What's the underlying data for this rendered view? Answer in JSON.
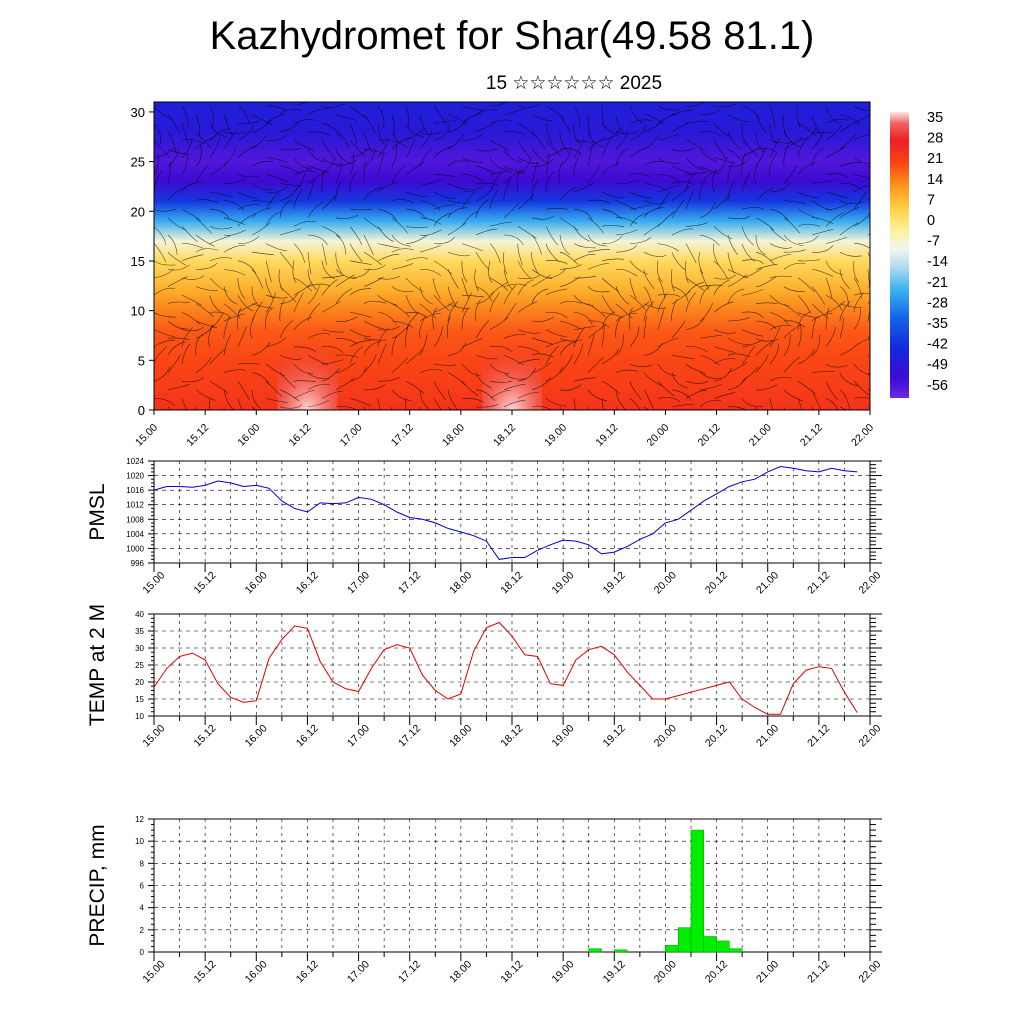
{
  "header": {
    "title": "Kazhydromet for Shar(49.58 81.1)",
    "subtitle": "15 ☆☆☆☆☆☆ 2025"
  },
  "time_ticks": [
    "15.00",
    "15.12",
    "16.00",
    "16.12",
    "17.00",
    "17.12",
    "18.00",
    "18.12",
    "19.00",
    "19.12",
    "20.00",
    "20.12",
    "21.00",
    "21.12",
    "22.00"
  ],
  "chart_data": [
    {
      "type": "heatmap",
      "title": "",
      "xlabel": "",
      "ylabel": "",
      "x_ticks": [
        "15.00",
        "15.12",
        "16.00",
        "16.12",
        "17.00",
        "17.12",
        "18.00",
        "18.12",
        "19.00",
        "19.12",
        "20.00",
        "20.12",
        "21.00",
        "21.12",
        "22.00"
      ],
      "y_ticks": [
        0,
        5,
        10,
        15,
        20,
        25,
        30
      ],
      "ylim": [
        0,
        31
      ],
      "colorbar_labels": [
        "35",
        "28",
        "21",
        "14",
        "7",
        "0",
        "-7",
        "-14",
        "-21",
        "-28",
        "-35",
        "-42",
        "-49",
        "-56"
      ],
      "vertical_profile_levels": [
        0,
        2,
        5,
        8,
        10,
        12,
        15,
        17,
        19,
        21,
        23,
        25,
        28,
        31
      ],
      "vertical_profile_values": [
        24,
        22,
        20,
        18,
        14,
        9,
        2,
        -8,
        -25,
        -42,
        -55,
        -58,
        -50,
        -48
      ],
      "surface_max_times": [
        "16.12",
        "18.12"
      ],
      "overlay": "wind streamlines"
    },
    {
      "type": "line",
      "ylabel": "PMSL",
      "ylim": [
        996,
        1024
      ],
      "y_ticks": [
        996,
        1000,
        1004,
        1008,
        1012,
        1016,
        1020,
        1024
      ],
      "x_ticks": [
        "15.00",
        "15.12",
        "16.00",
        "16.12",
        "17.00",
        "17.12",
        "18.00",
        "18.12",
        "19.00",
        "19.12",
        "20.00",
        "20.12",
        "21.00",
        "21.12",
        "22.00"
      ],
      "series": [
        {
          "color": "#0000cc",
          "x": [
            0,
            3,
            6,
            9,
            12,
            15,
            18,
            21,
            24,
            27,
            30,
            33,
            36,
            39,
            42,
            45,
            48,
            51,
            54,
            57,
            60,
            63,
            66,
            69,
            72,
            75,
            78,
            81,
            84,
            87,
            90,
            93,
            96,
            99,
            102,
            105,
            108,
            111,
            114,
            117,
            120,
            123,
            126,
            129,
            132,
            135,
            138,
            141,
            144,
            147,
            150,
            153,
            156,
            159,
            162,
            165
          ],
          "values": [
            1016,
            1017,
            1017,
            1016.8,
            1017.3,
            1018.5,
            1018,
            1017,
            1017.3,
            1016.5,
            1013,
            1011,
            1010,
            1012.5,
            1012.3,
            1012.5,
            1014,
            1013.5,
            1012,
            1010,
            1008.5,
            1008,
            1007,
            1005.5,
            1004.5,
            1003.5,
            1002,
            997,
            997.5,
            997.5,
            999.5,
            1001,
            1002.3,
            1002,
            1001,
            998.5,
            999,
            1000.5,
            1002.5,
            1004,
            1007,
            1008,
            1010.5,
            1013,
            1015,
            1017,
            1018.3,
            1019,
            1021,
            1022.5,
            1022,
            1021.3,
            1021,
            1022,
            1021.3,
            1021
          ]
        }
      ]
    },
    {
      "type": "line",
      "ylabel": "TEMP at 2 M",
      "ylim": [
        10,
        40
      ],
      "y_ticks": [
        10,
        15,
        20,
        25,
        30,
        35,
        40
      ],
      "x_ticks": [
        "15.00",
        "15.12",
        "16.00",
        "16.12",
        "17.00",
        "17.12",
        "18.00",
        "18.12",
        "19.00",
        "19.12",
        "20.00",
        "20.12",
        "21.00",
        "21.12",
        "22.00"
      ],
      "series": [
        {
          "color": "#dd0000",
          "x": [
            0,
            3,
            6,
            9,
            12,
            15,
            18,
            21,
            24,
            27,
            30,
            33,
            36,
            39,
            42,
            45,
            48,
            51,
            54,
            57,
            60,
            63,
            66,
            69,
            72,
            75,
            78,
            81,
            84,
            87,
            90,
            93,
            96,
            99,
            102,
            105,
            108,
            111,
            114,
            117,
            120,
            123,
            126,
            129,
            132,
            135,
            138,
            141,
            144,
            147,
            150,
            153,
            156,
            159,
            162,
            165
          ],
          "values": [
            18.5,
            24,
            27.5,
            28.5,
            26.5,
            19.5,
            15.5,
            14,
            14.5,
            27,
            32.5,
            36.5,
            35.8,
            26,
            20,
            18,
            17.2,
            24,
            29.5,
            31,
            30,
            22,
            17.5,
            15,
            16.5,
            29,
            36,
            37.5,
            33.5,
            28,
            27.5,
            19.5,
            19,
            26.5,
            29.5,
            30.5,
            28,
            23,
            19,
            15,
            15,
            16,
            17,
            18,
            19,
            20,
            15,
            12.5,
            10.5,
            10.5,
            19.5,
            23.5,
            24.5,
            24,
            17,
            11
          ]
        }
      ]
    },
    {
      "type": "bar",
      "ylabel": "PRECIP, mm",
      "ylim": [
        0,
        12
      ],
      "y_ticks": [
        0,
        2,
        4,
        6,
        8,
        10,
        12
      ],
      "x_ticks": [
        "15.00",
        "15.12",
        "16.00",
        "16.12",
        "17.00",
        "17.12",
        "18.00",
        "18.12",
        "19.00",
        "19.12",
        "20.00",
        "20.12",
        "21.00",
        "21.12",
        "22.00"
      ],
      "series": [
        {
          "color": "#00ee00",
          "x": [
            102,
            108,
            120,
            123,
            126,
            129,
            132,
            135
          ],
          "values": [
            0.3,
            0.2,
            0.6,
            2.2,
            11.0,
            1.4,
            1.0,
            0.3
          ]
        }
      ]
    }
  ]
}
